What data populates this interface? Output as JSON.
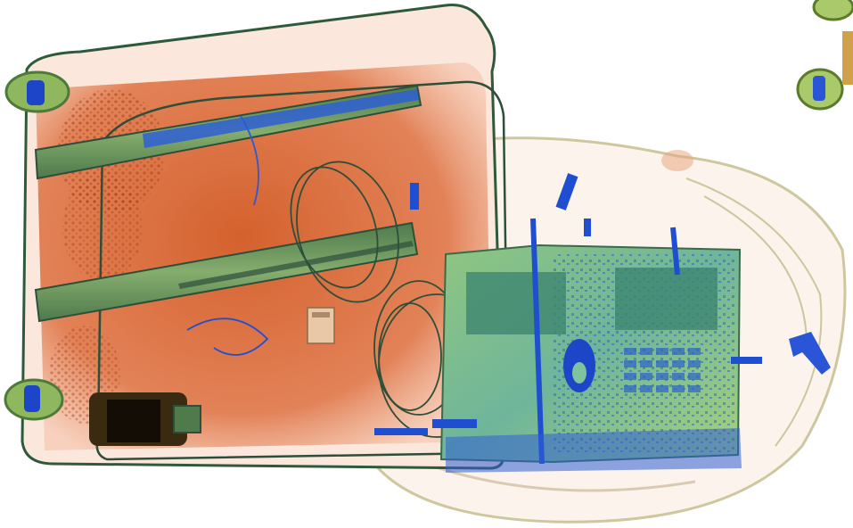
{
  "image": {
    "kind": "x-ray baggage scan",
    "background": "#ffffff",
    "palette": {
      "organic_orange": "#d9642e",
      "organic_light": "#f3b79a",
      "inorganic_green": "#5e8f55",
      "metal_blue": "#1f4fd0",
      "dense_dark": "#1a1208",
      "electronics_cyan": "#7fc2a0",
      "bag_outline": "#2f5a3a"
    },
    "objects": [
      "suitcase",
      "telescopic-handle-left",
      "telescopic-handle-right",
      "suitcase-wheels",
      "coiled-cables",
      "razor",
      "dense-cylinder",
      "laptop",
      "laptop-keyboard",
      "backpack",
      "stroller-wheels"
    ]
  }
}
